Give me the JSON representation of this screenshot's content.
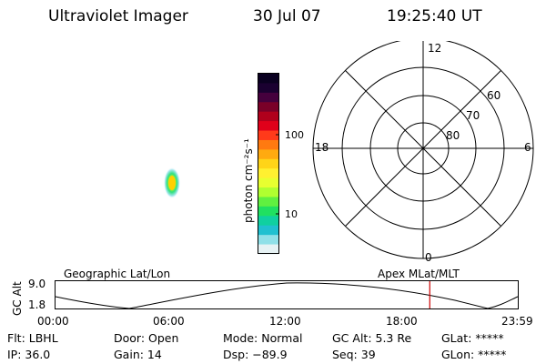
{
  "header": {
    "instrument": "Ultraviolet Imager",
    "date": "30 Jul 07",
    "time": "19:25:40 UT"
  },
  "colorbar": {
    "label": "photon cm⁻²s⁻¹",
    "ticks": [
      "100",
      "10"
    ],
    "colors": [
      "#0a0020",
      "#1a0030",
      "#45003d",
      "#7a0028",
      "#b0001c",
      "#e0001a",
      "#ff3a1a",
      "#ff7a10",
      "#ffaa10",
      "#ffd418",
      "#fff030",
      "#e8ff30",
      "#b0ff30",
      "#60f040",
      "#20e060",
      "#10d0a0",
      "#20c0d0",
      "#90e0e8",
      "#e6f2f4"
    ]
  },
  "polar_plot": {
    "mlt_labels": {
      "top": "12",
      "bottom": "0",
      "left": "18",
      "right": "6"
    },
    "lat_labels": [
      "60",
      "70",
      "80"
    ]
  },
  "timeline": {
    "left_label": "Geographic Lat/Lon",
    "right_label": "Apex MLat/MLT",
    "ylabel": "GC Alt",
    "ymax": "9.0",
    "ymin": "1.8",
    "x_ticks": [
      "00:00",
      "06:00",
      "12:00",
      "18:00",
      "23:59"
    ],
    "current_time_hours": 19.43,
    "marker_color": "#cc0000"
  },
  "info": {
    "flt": "Flt: LBHL",
    "ip": "IP: 36.0",
    "door": "Door: Open",
    "gain": "Gain: 14",
    "mode": "Mode: Normal",
    "dsp": "Dsp:  −89.9",
    "gc_alt": "GC Alt: 5.3 Re",
    "seq": "Seq: 39",
    "glat": "GLat: *****",
    "glon": "GLon: *****"
  }
}
